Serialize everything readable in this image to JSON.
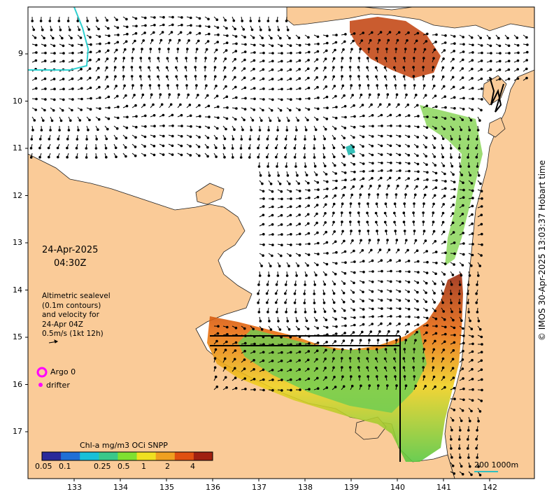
{
  "map": {
    "date_line1": "24-Apr-2025",
    "date_line2": "04:30Z",
    "legend_lines": [
      "Altimetric sealevel",
      "(0.1m contours)",
      "and velocity for",
      "24-Apr 04Z",
      "0.5m/s (1kt 12h)"
    ],
    "argo_label": "Argo 0",
    "drifter_label": "drifter",
    "credit": "© IMOS 30-Apr-2025 13:03:37 Hobart time",
    "scale_label": "200  1000m",
    "colorbar": {
      "title": "Chl-a mg/m3 OCi SNPP",
      "ticks": [
        "0.05",
        "0.1",
        "0.25",
        "0.5",
        "1",
        "2",
        "4"
      ],
      "colors": [
        "#2a2a9a",
        "#1f6fd6",
        "#19c0d8",
        "#3ac88a",
        "#7fe030",
        "#f0e020",
        "#f0a020",
        "#e05010",
        "#a02010"
      ]
    },
    "x_axis": {
      "ticks": [
        "133",
        "134",
        "135",
        "136",
        "137",
        "138",
        "139",
        "140",
        "141",
        "142"
      ]
    },
    "y_axis": {
      "ticks": [
        "9",
        "10",
        "11",
        "12",
        "13",
        "14",
        "15",
        "16",
        "17"
      ]
    },
    "colors": {
      "land": "#facb98",
      "ocean": "#ffffff",
      "argo": "#ff00ff",
      "drifter": "#ff00ff",
      "scale": "#30c0c0",
      "contour": "#30d0d0"
    }
  }
}
